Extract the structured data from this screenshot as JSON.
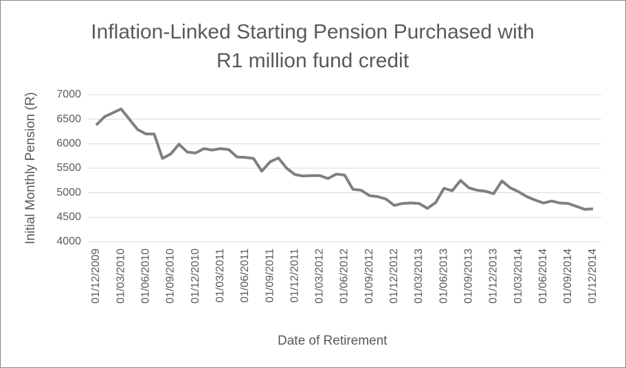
{
  "chart_data": {
    "type": "line",
    "title": [
      "Inflation-Linked Starting Pension Purchased with",
      "R1 million fund credit"
    ],
    "x_label": "Date of Retirement",
    "y_label": "Initial Monthly Pension (R)",
    "categories": [
      "01/12/2009",
      null,
      null,
      "01/03/2010",
      null,
      null,
      "01/06/2010",
      null,
      null,
      "01/09/2010",
      null,
      null,
      "01/12/2010",
      null,
      null,
      "01/03/2011",
      null,
      null,
      "01/06/2011",
      null,
      null,
      "01/09/2011",
      null,
      null,
      "01/12/2011",
      null,
      null,
      "01/03/2012",
      null,
      null,
      "01/06/2012",
      null,
      null,
      "01/09/2012",
      null,
      null,
      "01/12/2012",
      null,
      null,
      "01/03/2013",
      null,
      null,
      "01/06/2013",
      null,
      null,
      "01/09/2013",
      null,
      null,
      "01/12/2013",
      null,
      null,
      "01/03/2014",
      null,
      null,
      "01/06/2014",
      null,
      null,
      "01/09/2014",
      null,
      null,
      "01/12/2014"
    ],
    "values": [
      6380,
      6550,
      6630,
      6710,
      6500,
      6290,
      6200,
      6200,
      5700,
      5790,
      5990,
      5830,
      5810,
      5900,
      5870,
      5900,
      5880,
      5730,
      5720,
      5700,
      5440,
      5630,
      5710,
      5500,
      5370,
      5340,
      5350,
      5350,
      5290,
      5380,
      5360,
      5070,
      5050,
      4940,
      4920,
      4870,
      4740,
      4780,
      4790,
      4780,
      4680,
      4800,
      5090,
      5040,
      5250,
      5100,
      5050,
      5030,
      4980,
      5240,
      5100,
      5020,
      4920,
      4850,
      4790,
      4830,
      4790,
      4780,
      4720,
      4660,
      4670
    ],
    "color": "#7f7f7f",
    "ylim": [
      4000,
      7000
    ],
    "yticks": [
      4000,
      4500,
      5000,
      5500,
      6000,
      6500,
      7000
    ],
    "grid": true
  }
}
